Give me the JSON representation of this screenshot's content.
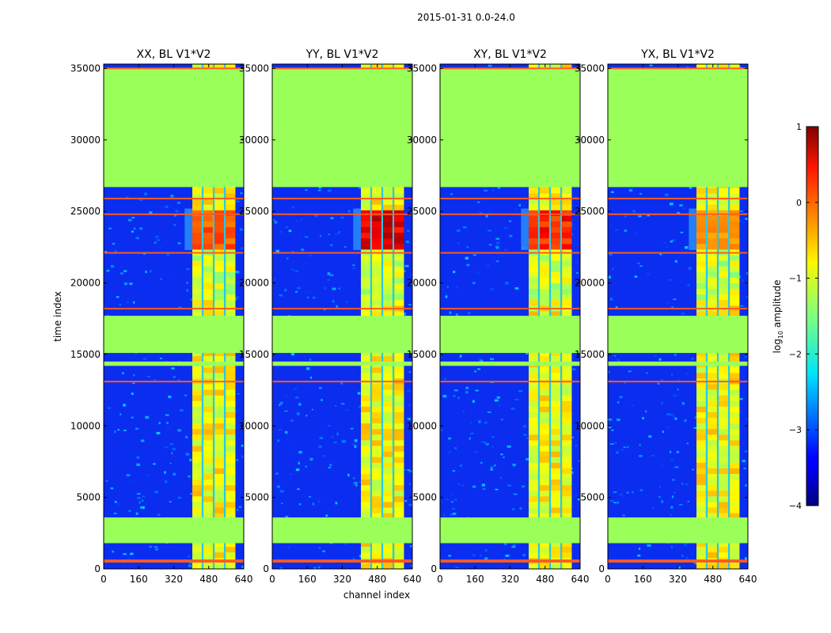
{
  "figure": {
    "suptitle": "2015-01-31 0.0-24.0",
    "xlabel": "channel index",
    "ylabel": "time index"
  },
  "chart_data": {
    "type": "heatmap",
    "panels": [
      {
        "title": "XX, BL V1*V2",
        "pol": "XX",
        "peak": 0.55
      },
      {
        "title": "YY, BL V1*V2",
        "pol": "YY",
        "peak": 0.95
      },
      {
        "title": "XY, BL V1*V2",
        "pol": "XY",
        "peak": 0.75
      },
      {
        "title": "YX, BL V1*V2",
        "pol": "YX",
        "peak": 0.35
      }
    ],
    "xlim": [
      0,
      640
    ],
    "ylim": [
      0,
      35300
    ],
    "xticks": [
      0,
      160,
      320,
      480,
      640
    ],
    "yticks": [
      0,
      5000,
      10000,
      15000,
      20000,
      25000,
      30000,
      35000
    ],
    "xtick_labels": [
      "0",
      "160",
      "320",
      "480",
      "640"
    ],
    "ytick_labels": [
      "0",
      "5000",
      "10000",
      "15000",
      "20000",
      "25000",
      "30000",
      "35000"
    ],
    "bright_channel_range": [
      405,
      600
    ],
    "flagged_time_blocks": [
      [
        1800,
        3600
      ],
      [
        14200,
        14500
      ],
      [
        15100,
        17700
      ],
      [
        26700,
        35000
      ]
    ],
    "red_line_times": [
      500,
      600,
      13100,
      18200,
      22100,
      24800,
      25900,
      35000
    ],
    "colorbar": {
      "label_prefix": "log",
      "label_sub": "10",
      "label_suffix": " amplitude",
      "min": -4,
      "max": 1,
      "ticks": [
        1,
        0,
        -1,
        -2,
        -3,
        -4
      ],
      "tick_labels": [
        "1",
        "0",
        "−1",
        "−2",
        "−3",
        "−4"
      ],
      "colormap": "jet"
    }
  }
}
